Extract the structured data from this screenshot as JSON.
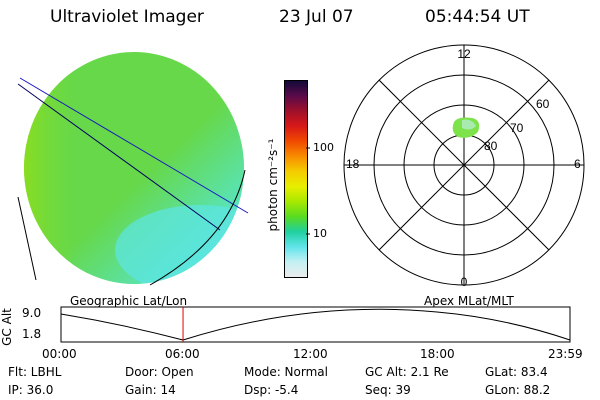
{
  "header": {
    "instrument": "Ultraviolet Imager",
    "date": "23 Jul 07",
    "time": "05:44:54 UT"
  },
  "colorbar": {
    "unit_label": "photon cm⁻²s⁻¹",
    "ticks": [
      "100",
      "10"
    ],
    "colors": [
      "#120a3a",
      "#5a0a4a",
      "#a0102a",
      "#d81818",
      "#f04a00",
      "#f88c00",
      "#f4cc00",
      "#e8ee00",
      "#a8e800",
      "#58dc20",
      "#20d0a0",
      "#60e4ea",
      "#c4f0f4",
      "#ececec"
    ]
  },
  "image_panel": {
    "dominant_color": "#66d84a",
    "shade_color": "#54e8e0"
  },
  "polar_plot": {
    "mlt_labels": {
      "top": "12",
      "left": "18",
      "right": "6",
      "bottom": "0"
    },
    "lat_labels": [
      "60",
      "70",
      "80"
    ],
    "spot_color": "#7ee24a"
  },
  "altitude_plot": {
    "left_title": "Geographic Lat/Lon",
    "right_title": "Apex MLat/MLT",
    "ylabel": "GC Alt",
    "yticks": [
      "9.0",
      "1.8"
    ],
    "xticks": [
      "00:00",
      "06:00",
      "12:00",
      "18:00",
      "23:59"
    ],
    "current_time_hours": 5.75
  },
  "status": {
    "row1": [
      {
        "text": "Flt: LBHL"
      },
      {
        "text": "Door: Open"
      },
      {
        "text": "Mode: Normal"
      },
      {
        "text": "GC Alt: 2.1 Re"
      },
      {
        "text": "GLat:  83.4"
      }
    ],
    "row2": [
      {
        "text": "IP: 36.0"
      },
      {
        "text": "Gain: 14"
      },
      {
        "text": "Dsp:   -5.4"
      },
      {
        "text": "Seq: 39"
      },
      {
        "text": "GLon:  88.2"
      }
    ]
  }
}
